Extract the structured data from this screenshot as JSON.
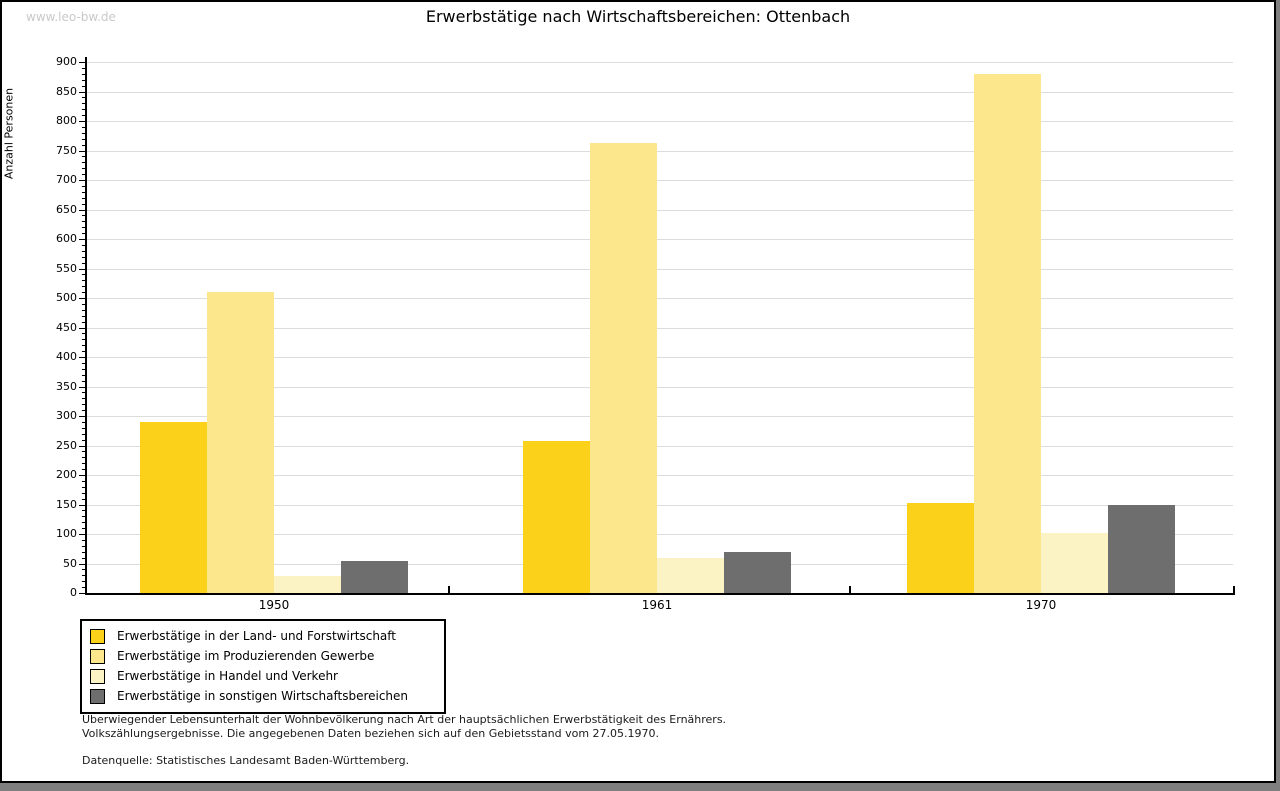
{
  "watermark": "www.leo-bw.de",
  "title": "Erwerbstätige nach Wirtschaftsbereichen: Ottenbach",
  "chart_data": {
    "type": "bar",
    "title": "Erwerbstätige nach Wirtschaftsbereichen: Ottenbach",
    "xlabel": "",
    "ylabel": "Anzahl Personen",
    "ylim": [
      0,
      900
    ],
    "ytick_step": 50,
    "ytick_minor_step": 10,
    "grid": true,
    "legend_position": "bottom-left",
    "categories": [
      "1950",
      "1961",
      "1970"
    ],
    "series": [
      {
        "name": "Erwerbstätige in der Land- und Forstwirtschaft",
        "color": "#FCD119",
        "values": [
          290,
          257,
          152
        ]
      },
      {
        "name": "Erwerbstätige im Produzierenden Gewerbe",
        "color": "#FCE78D",
        "values": [
          510,
          763,
          880
        ]
      },
      {
        "name": "Erwerbstätige in Handel und Verkehr",
        "color": "#FCF3C5",
        "values": [
          28,
          59,
          102
        ]
      },
      {
        "name": "Erwerbstätige in sonstigen Wirtschaftsbereichen",
        "color": "#6E6E6E",
        "values": [
          55,
          70,
          149
        ]
      }
    ]
  },
  "footnotes": {
    "line1": "Überwiegender Lebensunterhalt der Wohnbevölkerung nach Art der hauptsächlichen Erwerbstätigkeit des Ernährers.",
    "line2": "Volkszählungsergebnisse. Die angegebenen Daten beziehen sich auf den Gebietsstand vom 27.05.1970.",
    "source": "Datenquelle: Statistisches Landesamt Baden-Württemberg."
  }
}
